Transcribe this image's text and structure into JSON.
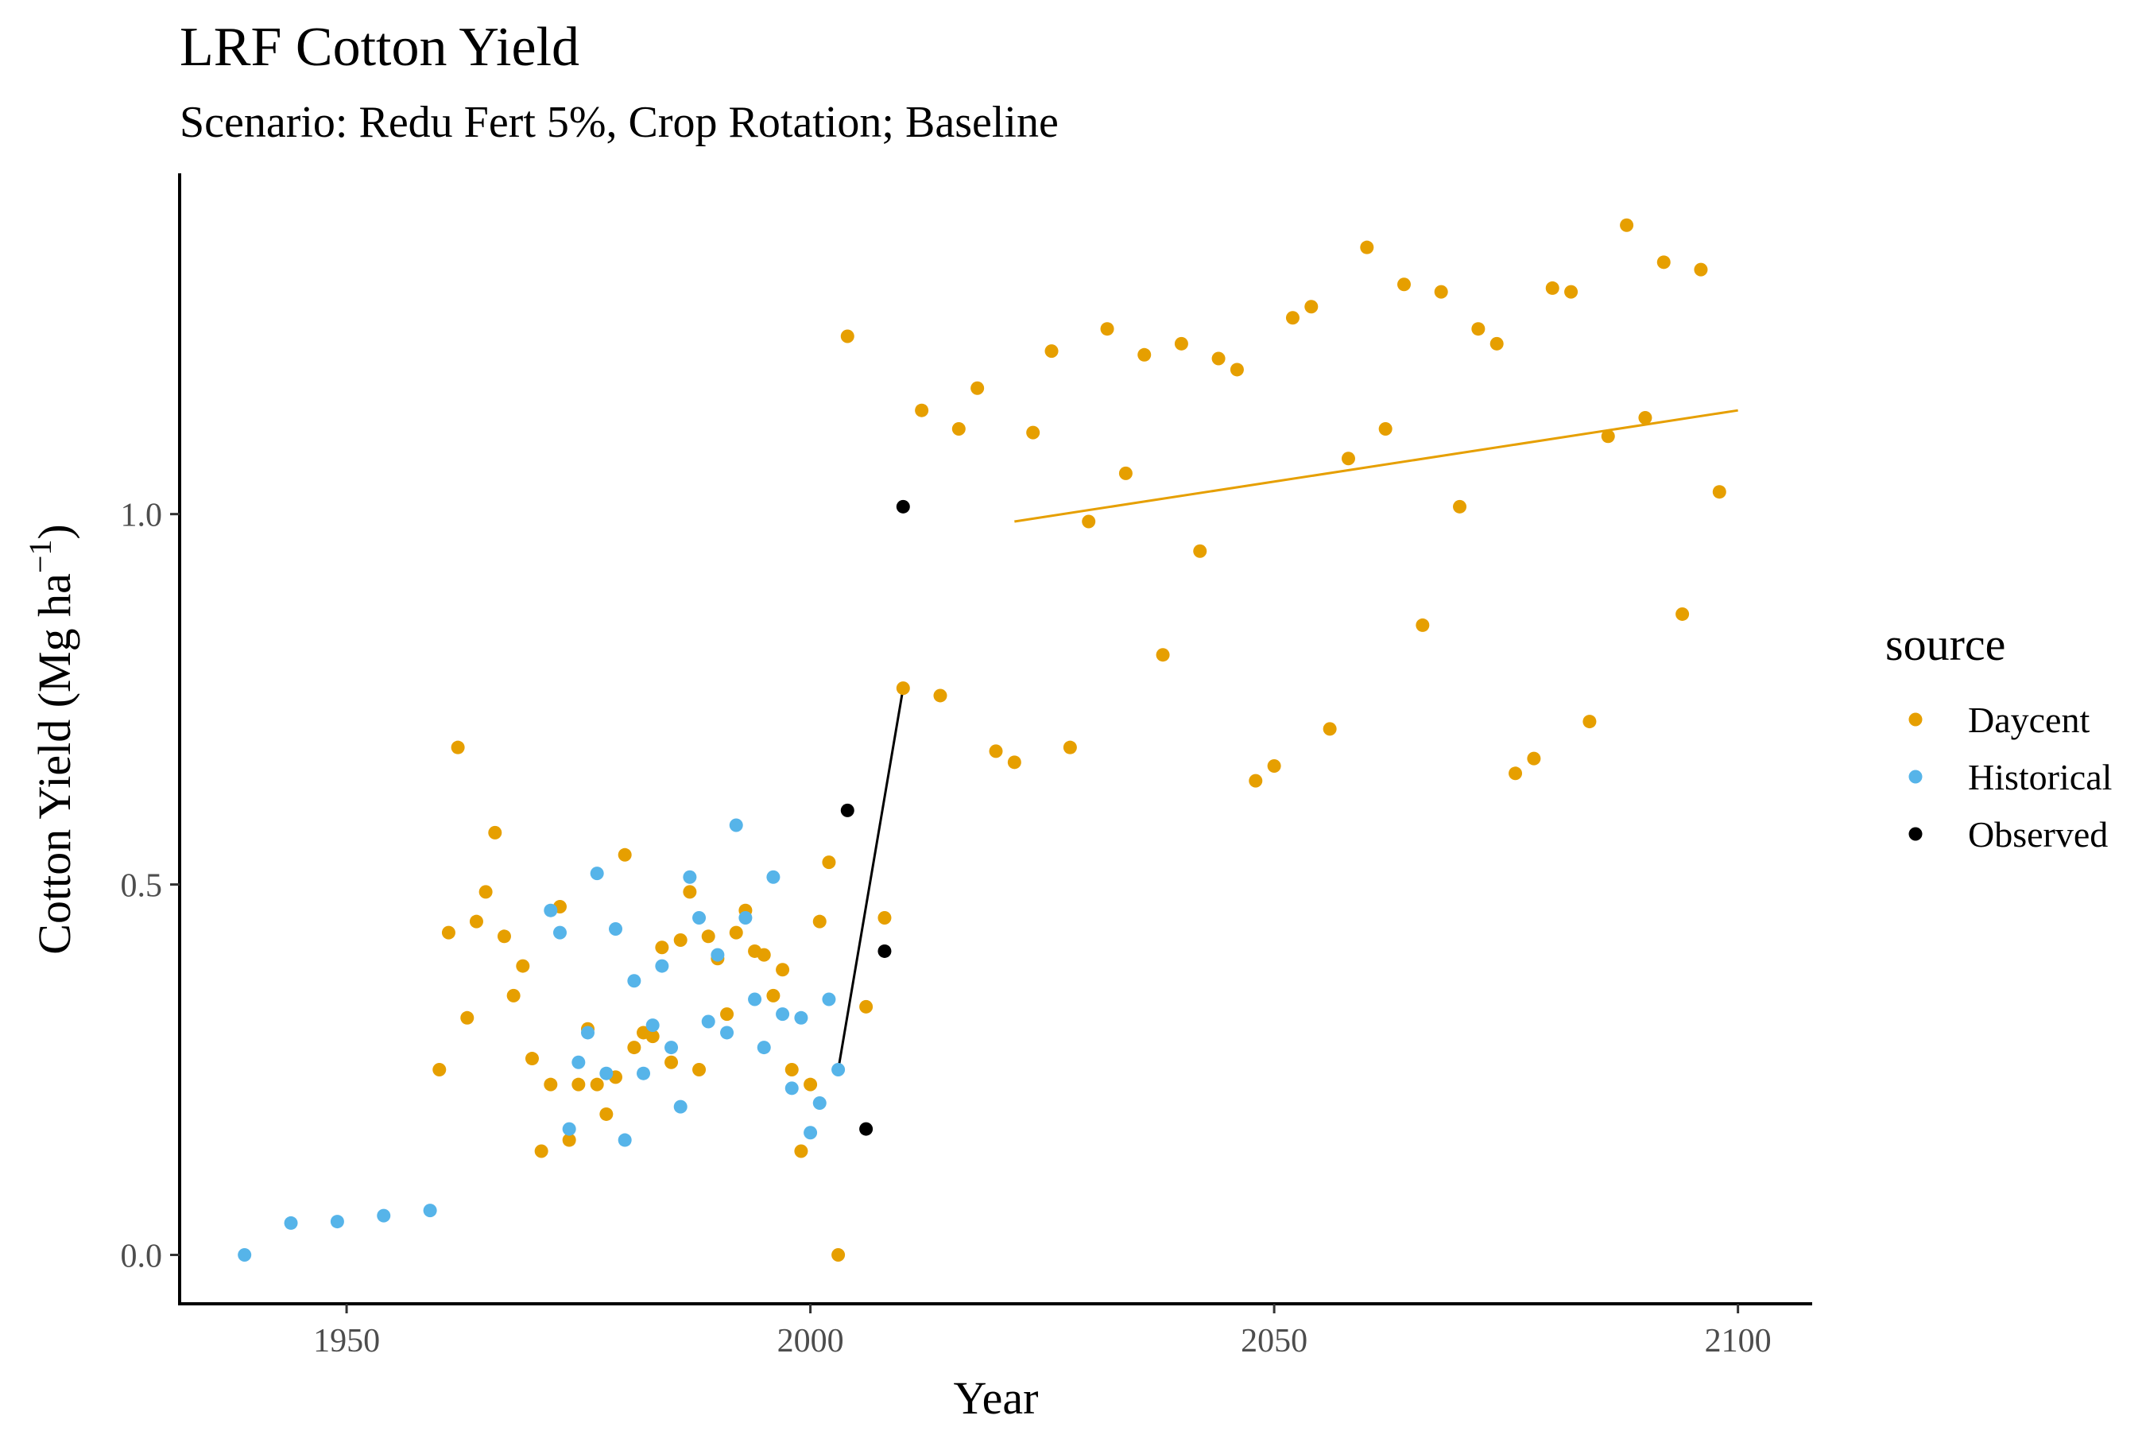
{
  "chart_data": {
    "type": "scatter",
    "title": "LRF Cotton Yield",
    "subtitle": "Scenario: Redu Fert 5%, Crop Rotation; Baseline",
    "xlabel": "Year",
    "ylabel_main": "Cotton Yield (Mg ha",
    "ylabel_sup": "−1",
    "ylabel_close": ")",
    "xlim": [
      1932,
      2108
    ],
    "ylim": [
      -0.066,
      1.46
    ],
    "x_ticks": [
      1950,
      2000,
      2050,
      2100
    ],
    "x_tick_labels": [
      "1950",
      "2000",
      "2050",
      "2100"
    ],
    "y_ticks": [
      0.0,
      0.5,
      1.0
    ],
    "y_tick_labels": [
      "0.0",
      "0.5",
      "1.0"
    ],
    "grid": false,
    "legend": {
      "title": "source",
      "position": "right"
    },
    "series": [
      {
        "name": "Daycent",
        "color": "#E69F00",
        "points": [
          [
            1960,
            0.25
          ],
          [
            1961,
            0.435
          ],
          [
            1962,
            0.685
          ],
          [
            1963,
            0.32
          ],
          [
            1964,
            0.45
          ],
          [
            1965,
            0.49
          ],
          [
            1966,
            0.57
          ],
          [
            1967,
            0.43
          ],
          [
            1968,
            0.35
          ],
          [
            1969,
            0.39
          ],
          [
            1970,
            0.265
          ],
          [
            1971,
            0.14
          ],
          [
            1972,
            0.23
          ],
          [
            1973,
            0.47
          ],
          [
            1974,
            0.155
          ],
          [
            1975,
            0.23
          ],
          [
            1976,
            0.305
          ],
          [
            1977,
            0.23
          ],
          [
            1978,
            0.19
          ],
          [
            1979,
            0.24
          ],
          [
            1980,
            0.54
          ],
          [
            1981,
            0.28
          ],
          [
            1982,
            0.3
          ],
          [
            1983,
            0.295
          ],
          [
            1984,
            0.415
          ],
          [
            1985,
            0.26
          ],
          [
            1986,
            0.425
          ],
          [
            1987,
            0.49
          ],
          [
            1988,
            0.25
          ],
          [
            1989,
            0.43
          ],
          [
            1990,
            0.4
          ],
          [
            1991,
            0.325
          ],
          [
            1992,
            0.435
          ],
          [
            1993,
            0.465
          ],
          [
            1994,
            0.41
          ],
          [
            1995,
            0.405
          ],
          [
            1996,
            0.35
          ],
          [
            1997,
            0.385
          ],
          [
            1998,
            0.25
          ],
          [
            1999,
            0.14
          ],
          [
            2000,
            0.23
          ],
          [
            2001,
            0.45
          ],
          [
            2002,
            0.53
          ],
          [
            2003,
            0.0
          ],
          [
            2004,
            1.24
          ],
          [
            2006,
            0.335
          ],
          [
            2008,
            0.455
          ],
          [
            2010,
            0.765
          ],
          [
            2012,
            1.14
          ],
          [
            2014,
            0.755
          ],
          [
            2016,
            1.115
          ],
          [
            2018,
            1.17
          ],
          [
            2020,
            0.68
          ],
          [
            2022,
            0.665
          ],
          [
            2024,
            1.11
          ],
          [
            2026,
            1.22
          ],
          [
            2028,
            0.685
          ],
          [
            2030,
            0.99
          ],
          [
            2032,
            1.25
          ],
          [
            2034,
            1.055
          ],
          [
            2036,
            1.215
          ],
          [
            2038,
            0.81
          ],
          [
            2040,
            1.23
          ],
          [
            2042,
            0.95
          ],
          [
            2044,
            1.21
          ],
          [
            2046,
            1.195
          ],
          [
            2048,
            0.64
          ],
          [
            2050,
            0.66
          ],
          [
            2052,
            1.265
          ],
          [
            2054,
            1.28
          ],
          [
            2056,
            0.71
          ],
          [
            2058,
            1.075
          ],
          [
            2060,
            1.36
          ],
          [
            2062,
            1.115
          ],
          [
            2064,
            1.31
          ],
          [
            2066,
            0.85
          ],
          [
            2068,
            1.3
          ],
          [
            2070,
            1.01
          ],
          [
            2072,
            1.25
          ],
          [
            2074,
            1.23
          ],
          [
            2076,
            0.65
          ],
          [
            2078,
            0.67
          ],
          [
            2080,
            1.305
          ],
          [
            2082,
            1.3
          ],
          [
            2084,
            0.72
          ],
          [
            2086,
            1.105
          ],
          [
            2088,
            1.39
          ],
          [
            2090,
            1.13
          ],
          [
            2092,
            1.34
          ],
          [
            2094,
            0.865
          ],
          [
            2096,
            1.33
          ],
          [
            2098,
            1.03
          ]
        ]
      },
      {
        "name": "Historical",
        "color": "#56B4E9",
        "points": [
          [
            1939,
            0.0
          ],
          [
            1944,
            0.043
          ],
          [
            1949,
            0.045
          ],
          [
            1954,
            0.053
          ],
          [
            1959,
            0.06
          ],
          [
            1972,
            0.465
          ],
          [
            1973,
            0.435
          ],
          [
            1974,
            0.17
          ],
          [
            1975,
            0.26
          ],
          [
            1976,
            0.3
          ],
          [
            1977,
            0.515
          ],
          [
            1978,
            0.245
          ],
          [
            1979,
            0.44
          ],
          [
            1980,
            0.155
          ],
          [
            1981,
            0.37
          ],
          [
            1982,
            0.245
          ],
          [
            1983,
            0.31
          ],
          [
            1984,
            0.39
          ],
          [
            1985,
            0.28
          ],
          [
            1986,
            0.2
          ],
          [
            1987,
            0.51
          ],
          [
            1988,
            0.455
          ],
          [
            1989,
            0.315
          ],
          [
            1990,
            0.405
          ],
          [
            1991,
            0.3
          ],
          [
            1992,
            0.58
          ],
          [
            1993,
            0.455
          ],
          [
            1994,
            0.345
          ],
          [
            1995,
            0.28
          ],
          [
            1996,
            0.51
          ],
          [
            1997,
            0.325
          ],
          [
            1998,
            0.225
          ],
          [
            1999,
            0.32
          ],
          [
            2000,
            0.165
          ],
          [
            2001,
            0.205
          ],
          [
            2002,
            0.345
          ],
          [
            2003,
            0.25
          ]
        ]
      },
      {
        "name": "Observed",
        "color": "#000000",
        "points": [
          [
            2004,
            0.6
          ],
          [
            2006,
            0.17
          ],
          [
            2008,
            0.41
          ],
          [
            2010,
            1.01
          ]
        ]
      }
    ],
    "lines": [
      {
        "color": "#000000",
        "points": [
          [
            2003,
            0.25
          ],
          [
            2010,
            0.765
          ]
        ]
      },
      {
        "color": "#E69F00",
        "points": [
          [
            2022,
            0.99
          ],
          [
            2100,
            1.14
          ]
        ]
      }
    ]
  }
}
